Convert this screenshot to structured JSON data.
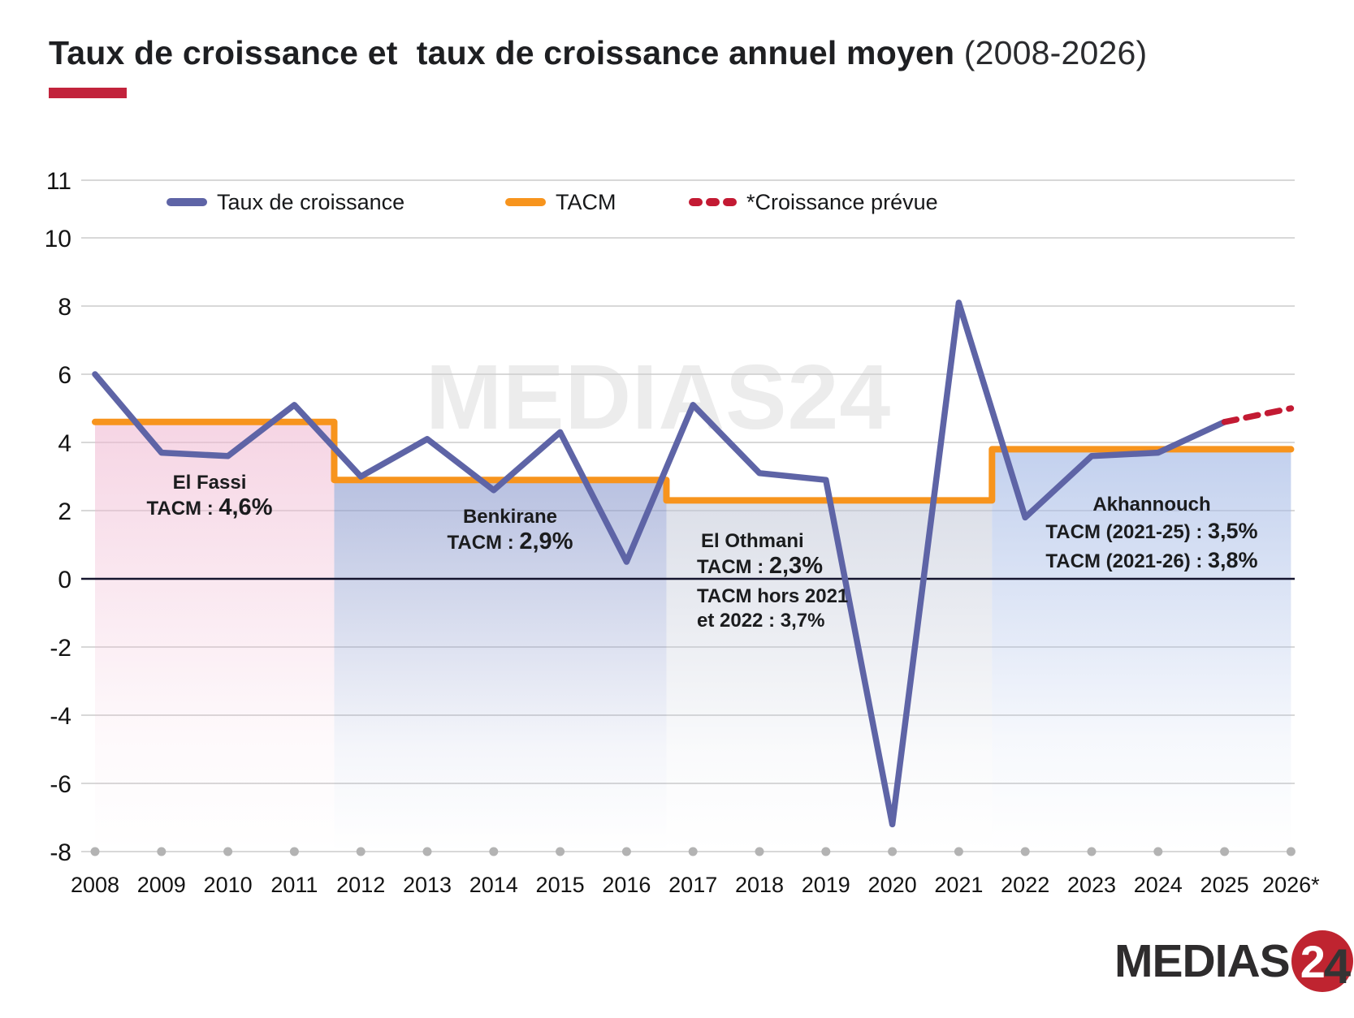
{
  "title": {
    "main": "Taux de croissance et  taux de croissance annuel moyen",
    "period": "(2008-2026)",
    "underline_color": "#c2233c"
  },
  "legend": [
    {
      "label": "Taux de croissance",
      "color": "#5e64a6",
      "style": "solid"
    },
    {
      "label": "TACM",
      "color": "#f7941d",
      "style": "solid"
    },
    {
      "label": "*Croissance prévue",
      "color": "#c31a33",
      "style": "dashed"
    }
  ],
  "watermark": "MEDIAS24",
  "logo": {
    "word": "MEDIAS",
    "two": "2",
    "four": "4",
    "accent_color": "#bf2430"
  },
  "annotations": {
    "el_fassi": {
      "name": "El Fassi",
      "label": "TACM : ",
      "value": "4,6%"
    },
    "benkirane": {
      "name": "Benkirane",
      "label": "TACM : ",
      "value": "2,9%"
    },
    "el_othmani": {
      "name": "El Othmani",
      "label": "TACM : ",
      "value": "2,3%",
      "note_line1": "TACM hors 2021",
      "note_line2": "et 2022 : 3,7%"
    },
    "akhannouch": {
      "name": "Akhannouch",
      "line1_label": "TACM (2021-25) : ",
      "line1_value": "3,5%",
      "line2_label": "TACM (2021-26) : ",
      "line2_value": "3,8%"
    }
  },
  "chart_data": {
    "type": "line",
    "title": "Taux de croissance et taux de croissance annuel moyen (2008-2026)",
    "ylim": [
      -8,
      11
    ],
    "yticks": [
      11,
      10,
      8,
      6,
      4,
      2,
      0,
      -2,
      -4,
      -6,
      -8
    ],
    "grid": true,
    "x_labels": [
      "2008",
      "2009",
      "2010",
      "2011",
      "2012",
      "2013",
      "2014",
      "2015",
      "2016",
      "2017",
      "2018",
      "2019",
      "2020",
      "2021",
      "2022",
      "2023",
      "2024",
      "2025",
      "2026*"
    ],
    "series": [
      {
        "name": "Taux de croissance",
        "type": "line",
        "color": "#5e64a6",
        "x": [
          2008,
          2009,
          2010,
          2011,
          2012,
          2013,
          2014,
          2015,
          2016,
          2017,
          2018,
          2019,
          2020,
          2021,
          2022,
          2023,
          2024,
          2025
        ],
        "values": [
          6.0,
          3.7,
          3.6,
          5.1,
          3.0,
          4.1,
          2.6,
          4.3,
          0.5,
          5.1,
          3.1,
          2.9,
          -7.2,
          8.1,
          1.8,
          3.6,
          3.7,
          4.6
        ]
      },
      {
        "name": "*Croissance prévue",
        "type": "line-dashed",
        "color": "#c31a33",
        "x": [
          2025,
          2026
        ],
        "values": [
          4.6,
          5.0
        ]
      },
      {
        "name": "TACM",
        "type": "step",
        "color": "#f7941d",
        "segments": [
          {
            "label": "El Fassi",
            "from": 2008,
            "to": 2011.6,
            "value": 4.6
          },
          {
            "label": "Benkirane",
            "from": 2011.6,
            "to": 2016.6,
            "value": 2.9
          },
          {
            "label": "El Othmani",
            "from": 2016.6,
            "to": 2021.5,
            "value": 2.3
          },
          {
            "label": "Akhannouch",
            "from": 2021.5,
            "to": 2026,
            "value": 3.8
          }
        ]
      }
    ],
    "regions": [
      {
        "label": "El Fassi",
        "from": 2008,
        "to": 2011.6,
        "top": 4.6,
        "color": "#f0b9d2",
        "opacity": 0.6
      },
      {
        "label": "Benkirane",
        "from": 2011.6,
        "to": 2016.6,
        "top": 2.9,
        "color": "#8d9bce",
        "opacity": 0.62
      },
      {
        "label": "El Othmani",
        "from": 2016.6,
        "to": 2021.5,
        "top": 2.3,
        "color": "#bfc5d6",
        "opacity": 0.55
      },
      {
        "label": "Akhannouch",
        "from": 2021.5,
        "to": 2026,
        "top": 3.8,
        "color": "#a9bde7",
        "opacity": 0.7
      }
    ],
    "legend_position": "top"
  }
}
